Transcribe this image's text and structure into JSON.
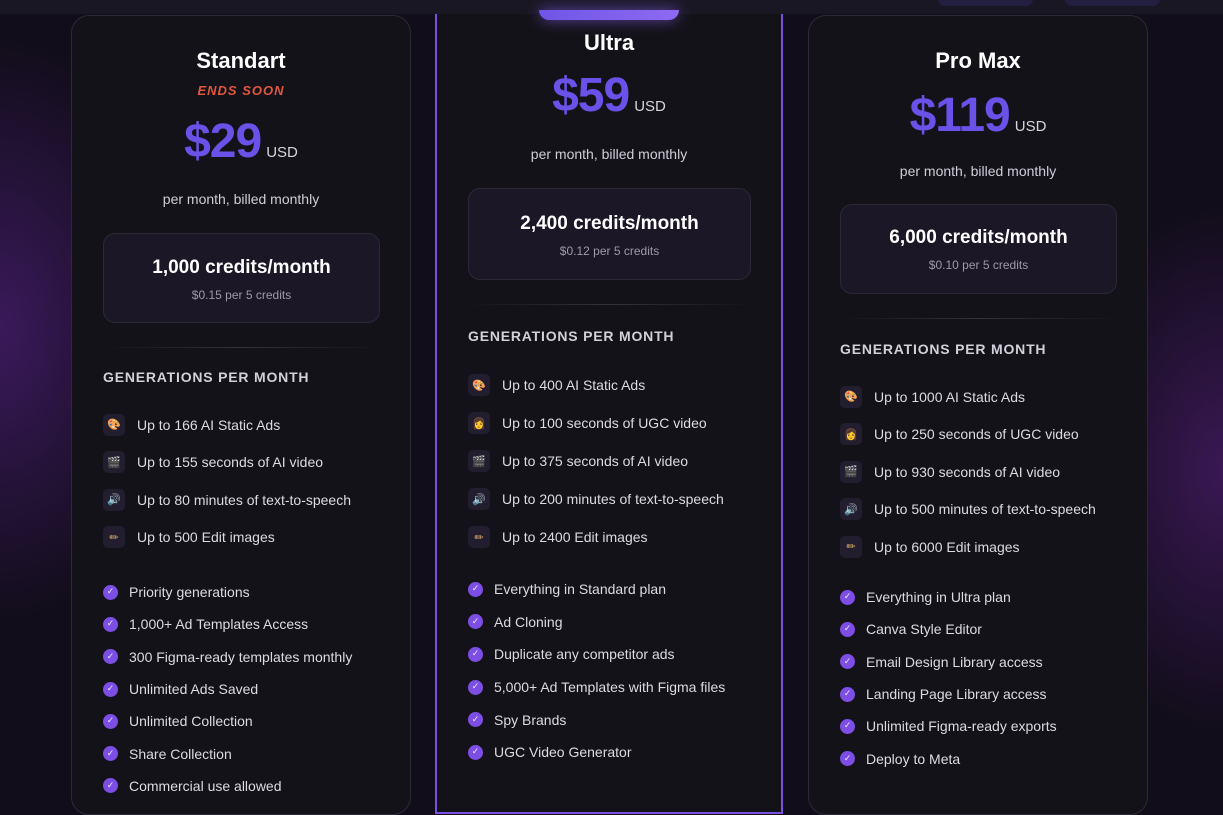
{
  "plans": [
    {
      "name": "Standart",
      "badge": "ENDS SOON",
      "price": "$29",
      "currency": "USD",
      "billing": "per month, billed monthly",
      "credits": "1,000 credits/month",
      "credit_rate": "$0.15 per 5 credits",
      "generations_title": "GENERATIONS PER MONTH",
      "generations": [
        {
          "icon": "palette-icon",
          "glyph": "🎨",
          "label": "Up to 166 AI Static Ads"
        },
        {
          "icon": "clapper-icon",
          "glyph": "🎬",
          "label": "Up to 155 seconds of AI video"
        },
        {
          "icon": "speaker-icon",
          "glyph": "🔊",
          "label": "Up to 80 minutes of text-to-speech"
        },
        {
          "icon": "pencil-icon",
          "glyph": "✏",
          "label": "Up to 500 Edit images"
        }
      ],
      "features": [
        "Priority generations",
        "1,000+ Ad Templates Access",
        "300 Figma-ready templates monthly",
        "Unlimited Ads Saved",
        "Unlimited Collection",
        "Share Collection",
        "Commercial use allowed"
      ]
    },
    {
      "name": "Ultra",
      "price": "$59",
      "currency": "USD",
      "billing": "per month, billed monthly",
      "credits": "2,400 credits/month",
      "credit_rate": "$0.12 per 5 credits",
      "generations_title": "GENERATIONS PER MONTH",
      "generations": [
        {
          "icon": "palette-icon",
          "glyph": "🎨",
          "label": "Up to 400 AI Static Ads"
        },
        {
          "icon": "person-icon",
          "glyph": "👩",
          "label": "Up to 100 seconds of UGC video"
        },
        {
          "icon": "clapper-icon",
          "glyph": "🎬",
          "label": "Up to 375 seconds of AI video"
        },
        {
          "icon": "speaker-icon",
          "glyph": "🔊",
          "label": "Up to 200 minutes of text-to-speech"
        },
        {
          "icon": "pencil-icon",
          "glyph": "✏",
          "label": "Up to 2400 Edit images"
        }
      ],
      "features": [
        "Everything in Standard plan",
        "Ad Cloning",
        "Duplicate any competitor ads",
        "5,000+ Ad Templates with Figma files",
        "Spy Brands",
        "UGC Video Generator"
      ]
    },
    {
      "name": "Pro Max",
      "price": "$119",
      "currency": "USD",
      "billing": "per month, billed monthly",
      "credits": "6,000 credits/month",
      "credit_rate": "$0.10 per 5 credits",
      "generations_title": "GENERATIONS PER MONTH",
      "generations": [
        {
          "icon": "palette-icon",
          "glyph": "🎨",
          "label": "Up to 1000 AI Static Ads"
        },
        {
          "icon": "person-icon",
          "glyph": "👩",
          "label": "Up to 250 seconds of UGC video"
        },
        {
          "icon": "clapper-icon",
          "glyph": "🎬",
          "label": "Up to 930 seconds of AI video"
        },
        {
          "icon": "speaker-icon",
          "glyph": "🔊",
          "label": "Up to 500 minutes of text-to-speech"
        },
        {
          "icon": "pencil-icon",
          "glyph": "✏",
          "label": "Up to 6000 Edit images"
        }
      ],
      "features": [
        "Everything in Ultra plan",
        "Canva Style Editor",
        "Email Design Library access",
        "Landing Page Library access",
        "Unlimited Figma-ready exports",
        "Deploy to Meta"
      ]
    }
  ],
  "check_glyph": "✓",
  "colors": {
    "accent": "#6a52e8",
    "check": "#7c4ee4",
    "ends_soon": "#e0573f",
    "featured_border": "#7b4fe0"
  }
}
